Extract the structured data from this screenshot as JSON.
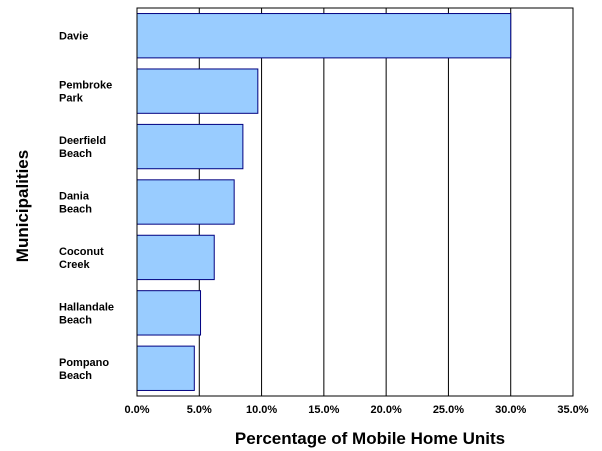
{
  "chart_data": {
    "type": "bar",
    "orientation": "horizontal",
    "categories": [
      "Davie",
      "Pembroke Park",
      "Deerfield Beach",
      "Dania Beach",
      "Coconut Creek",
      "Hallandale Beach",
      "Pompano Beach"
    ],
    "category_lines": [
      [
        "Davie"
      ],
      [
        "Pembroke",
        "Park"
      ],
      [
        "Deerfield",
        "Beach"
      ],
      [
        "Dania",
        "Beach"
      ],
      [
        "Coconut",
        "Creek"
      ],
      [
        "Hallandale",
        "Beach"
      ],
      [
        "Pompano",
        "Beach"
      ]
    ],
    "values": [
      30.0,
      9.7,
      8.5,
      7.8,
      6.2,
      5.1,
      4.6
    ],
    "title": "",
    "xlabel": "Percentage of Mobile Home Units",
    "ylabel": "Municipalities",
    "xlim": [
      0,
      35
    ],
    "xticks": [
      "0.0%",
      "5.0%",
      "10.0%",
      "15.0%",
      "20.0%",
      "25.0%",
      "30.0%",
      "35.0%"
    ],
    "grid": "vertical",
    "legend": "none",
    "bar_color": "#99ccff",
    "bar_edge_color": "#000080"
  }
}
